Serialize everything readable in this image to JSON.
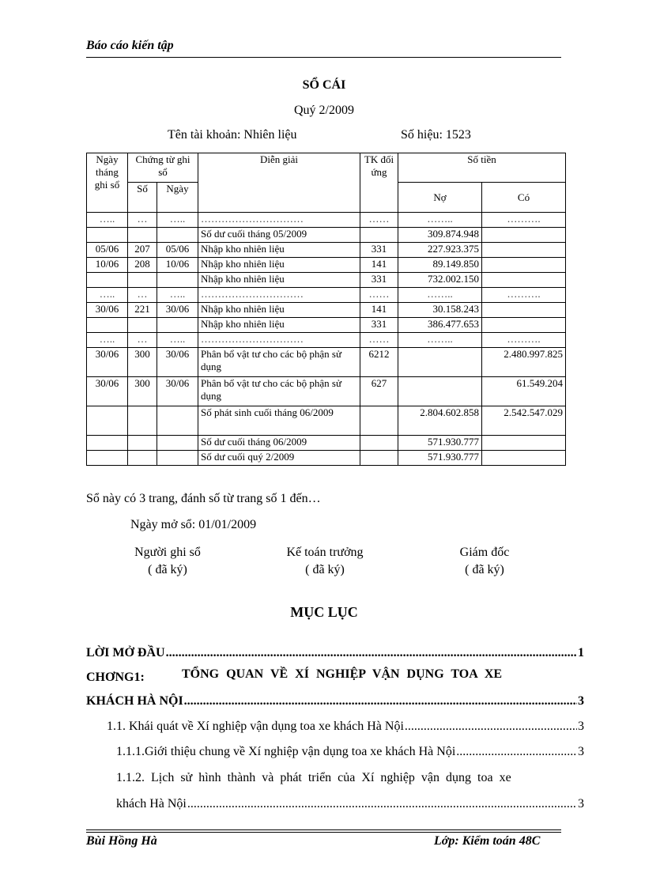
{
  "header": {
    "title": "Báo cáo kiến tập"
  },
  "ledger": {
    "title": "SỔ CÁI",
    "period": "Quý 2/2009",
    "account_name": "Tên tài khoản: Nhiên liệu",
    "account_code": "Số hiệu:  1523",
    "columns": {
      "date": "Ngày tháng ghi sổ",
      "voucher": "Chứng từ ghi sổ",
      "voucher_no": "Số",
      "voucher_date": "Ngày",
      "description": "Diễn giải",
      "contra": "TK đối ứng",
      "amount": "Số tiền",
      "debit": "Nợ",
      "credit": "Có"
    },
    "rows": [
      {
        "date": "…..",
        "no": "…",
        "vdate": "…..",
        "desc": "…………………………",
        "tk": "……",
        "debit": "……..",
        "credit": "……….",
        "dots": true
      },
      {
        "date": "",
        "no": "",
        "vdate": "",
        "desc": "Số dư cuối tháng 05/2009",
        "tk": "",
        "debit": "309.874.948",
        "credit": ""
      },
      {
        "date": "05/06",
        "no": "207",
        "vdate": "05/06",
        "desc": "Nhập kho nhiên liệu",
        "tk": "331",
        "debit": "227.923.375",
        "credit": ""
      },
      {
        "date": "10/06",
        "no": "208",
        "vdate": "10/06",
        "desc": "Nhập kho nhiên liệu",
        "tk": "141",
        "debit": "89.149.850",
        "credit": ""
      },
      {
        "date": "",
        "no": "",
        "vdate": "",
        "desc": "Nhập kho nhiên liệu",
        "tk": "331",
        "debit": "732.002.150",
        "credit": ""
      },
      {
        "date": "…..",
        "no": "…",
        "vdate": "…..",
        "desc": "…………………………",
        "tk": "……",
        "debit": "……..",
        "credit": "……….",
        "dots": true
      },
      {
        "date": "30/06",
        "no": "221",
        "vdate": "30/06",
        "desc": "Nhập kho nhiên liệu",
        "tk": "141",
        "debit": "30.158.243",
        "credit": ""
      },
      {
        "date": "",
        "no": "",
        "vdate": "",
        "desc": "Nhập kho nhiên liệu",
        "tk": "331",
        "debit": "386.477.653",
        "credit": ""
      },
      {
        "date": "…..",
        "no": "…",
        "vdate": "…..",
        "desc": "…………………………",
        "tk": "……",
        "debit": "……..",
        "credit": "……….",
        "dots": true
      },
      {
        "date": "30/06",
        "no": "300",
        "vdate": "30/06",
        "desc": "Phân bổ vật tư cho các bộ phận sử dụng",
        "tk": "6212",
        "debit": "",
        "credit": "2.480.997.825",
        "tall": true
      },
      {
        "date": "30/06",
        "no": "300",
        "vdate": "30/06",
        "desc": "Phân bổ vật tư cho các bộ phận sử dụng",
        "tk": "627",
        "debit": "",
        "credit": "61.549.204",
        "tall": true
      },
      {
        "date": "",
        "no": "",
        "vdate": "",
        "desc": "Số phát sinh cuối tháng 06/2009",
        "tk": "",
        "debit": "2.804.602.858",
        "credit": "2.542.547.029",
        "tall": true
      },
      {
        "date": "",
        "no": "",
        "vdate": "",
        "desc": "Số dư cuối tháng 06/2009",
        "tk": "",
        "debit": "571.930.777",
        "credit": ""
      },
      {
        "date": "",
        "no": "",
        "vdate": "",
        "desc": "Số dư cuối quý 2/2009",
        "tk": "",
        "debit": "571.930.777",
        "credit": ""
      }
    ]
  },
  "notes": {
    "pages": "Sổ này có 3 trang, đánh số từ trang số 1 đến…",
    "opened": "Ngày mở sổ: 01/01/2009"
  },
  "signatures": [
    {
      "role": "Người ghi sổ",
      "status": "( đã ký)"
    },
    {
      "role": "Kế toán trưởng",
      "status": "( đã ký)"
    },
    {
      "role": "Giám đốc",
      "status": "( đã ký)"
    }
  ],
  "toc": {
    "title": "MỤC LỤC",
    "entries": [
      {
        "label": "LỜI MỞ ĐẦU",
        "page": "1"
      },
      {
        "label_prefix": "CHƠNG1:",
        "label": "TỔNG QUAN VỀ XÍ NGHIỆP VẬN DỤNG TOA XE",
        "label_cont": "KHÁCH HÀ NỘI",
        "page": "3"
      },
      {
        "label": "1.1. Khái quát về Xí nghiệp vận dụng toa xe khách Hà Nội",
        "page": "3"
      },
      {
        "label": "1.1.1.Giới thiệu chung về Xí nghiệp vận dụng toa xe khách Hà Nội",
        "page": "3"
      },
      {
        "label": "1.1.2. Lịch sử hình thành và phát triển của Xí nghiệp vận dụng toa xe",
        "label_cont": "khách Hà Nội",
        "page": "3"
      }
    ]
  },
  "footer": {
    "author": "Bùi Hồng Hà",
    "class": "Lớp: Kiểm toán 48C"
  }
}
